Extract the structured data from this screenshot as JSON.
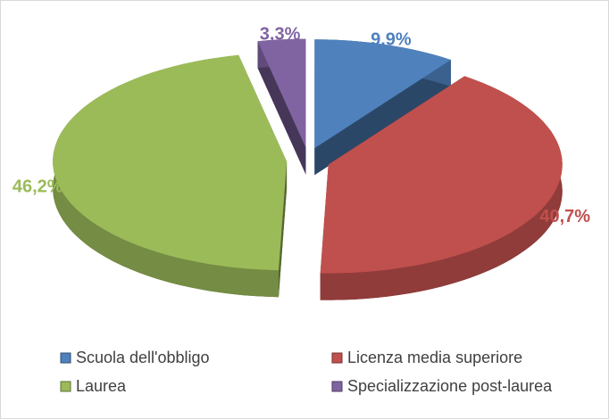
{
  "chart_data": {
    "type": "pie",
    "categories": [
      "Scuola dell'obbligo",
      "Licenza media superiore",
      "Laurea",
      "Specializzazione post-laurea"
    ],
    "values": [
      9.9,
      40.7,
      46.2,
      3.3
    ],
    "value_labels": [
      "9,9%",
      "40,7%",
      "46,2%",
      "3,3%"
    ],
    "colors": [
      "#4f81bd",
      "#c0504d",
      "#9bbb59",
      "#8064a2"
    ],
    "legend": "bottom"
  }
}
